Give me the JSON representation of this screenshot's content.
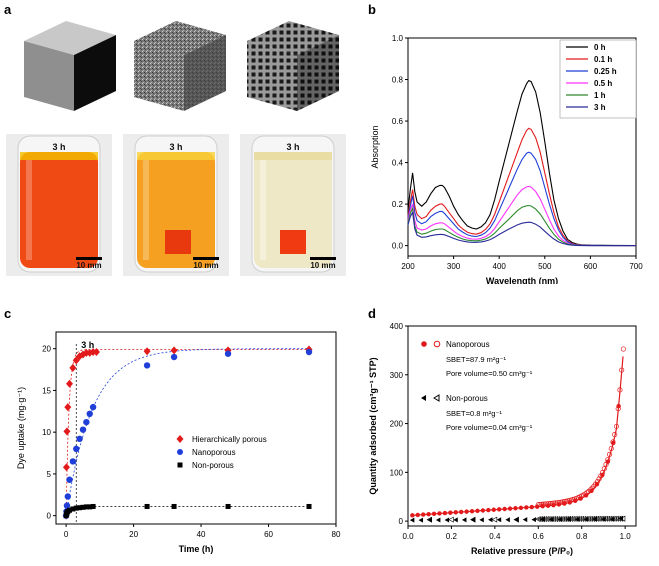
{
  "panels": {
    "a": {
      "label": "a",
      "time_labels": [
        "3 h",
        "3 h",
        "3 h"
      ],
      "scale_labels": [
        "10 mm",
        "10 mm",
        "10 mm"
      ]
    },
    "b": {
      "label": "b"
    },
    "c": {
      "label": "c"
    },
    "d": {
      "label": "d"
    }
  },
  "colors": {
    "black": "#000000",
    "red": "#e31a1c",
    "blue": "#1f3fd8",
    "magenta": "#ff33ff",
    "green": "#2e8b2e",
    "navy": "#2a2a9a",
    "liquid1": "#f04a14",
    "liquid2": "#f5a020",
    "liquid3": "#efe8c6"
  },
  "chart_data": [
    {
      "id": "b",
      "type": "line",
      "title": "",
      "xlabel": "Wavelength (nm)",
      "ylabel": "Absorption",
      "xlim": [
        200,
        700
      ],
      "ylim": [
        -0.05,
        1.0
      ],
      "xticks": [
        200,
        300,
        400,
        500,
        600,
        700
      ],
      "yticks": [
        0.0,
        0.2,
        0.4,
        0.6,
        0.8,
        1.0
      ],
      "legend_position": "top-right",
      "x": [
        200,
        205,
        210,
        215,
        220,
        230,
        240,
        250,
        260,
        270,
        275,
        280,
        290,
        300,
        310,
        320,
        330,
        340,
        350,
        360,
        370,
        380,
        390,
        400,
        420,
        440,
        450,
        460,
        465,
        470,
        480,
        490,
        500,
        510,
        520,
        530,
        540,
        550,
        560,
        570,
        580,
        600,
        650,
        700
      ],
      "series": [
        {
          "name": "0 h",
          "color": "#000000",
          "values": [
            0.17,
            0.27,
            0.35,
            0.26,
            0.21,
            0.19,
            0.21,
            0.25,
            0.28,
            0.29,
            0.29,
            0.28,
            0.24,
            0.19,
            0.15,
            0.12,
            0.095,
            0.085,
            0.08,
            0.09,
            0.11,
            0.15,
            0.22,
            0.31,
            0.48,
            0.65,
            0.73,
            0.78,
            0.795,
            0.79,
            0.74,
            0.64,
            0.5,
            0.35,
            0.22,
            0.13,
            0.07,
            0.03,
            0.015,
            0.008,
            0.004,
            0.002,
            0.001,
            0.0
          ]
        },
        {
          "name": "0.1 h",
          "color": "#e31a1c",
          "values": [
            0.14,
            0.21,
            0.27,
            0.19,
            0.15,
            0.13,
            0.14,
            0.17,
            0.19,
            0.2,
            0.2,
            0.19,
            0.16,
            0.13,
            0.1,
            0.08,
            0.065,
            0.058,
            0.055,
            0.062,
            0.078,
            0.105,
            0.15,
            0.21,
            0.33,
            0.45,
            0.51,
            0.555,
            0.565,
            0.56,
            0.52,
            0.45,
            0.35,
            0.25,
            0.16,
            0.09,
            0.05,
            0.022,
            0.01,
            0.005,
            0.003,
            0.001,
            0.0,
            0.0
          ]
        },
        {
          "name": "0.25 h",
          "color": "#1f3fd8",
          "values": [
            0.13,
            0.19,
            0.24,
            0.16,
            0.12,
            0.105,
            0.115,
            0.14,
            0.155,
            0.165,
            0.165,
            0.155,
            0.13,
            0.105,
            0.08,
            0.065,
            0.052,
            0.046,
            0.044,
            0.05,
            0.062,
            0.085,
            0.12,
            0.17,
            0.27,
            0.37,
            0.415,
            0.445,
            0.45,
            0.445,
            0.415,
            0.36,
            0.28,
            0.2,
            0.13,
            0.075,
            0.04,
            0.018,
            0.008,
            0.004,
            0.002,
            0.001,
            0.0,
            0.0
          ]
        },
        {
          "name": "0.5 h",
          "color": "#ff33ff",
          "values": [
            0.12,
            0.17,
            0.2,
            0.12,
            0.085,
            0.075,
            0.08,
            0.095,
            0.105,
            0.11,
            0.11,
            0.105,
            0.088,
            0.07,
            0.054,
            0.044,
            0.036,
            0.032,
            0.031,
            0.035,
            0.043,
            0.058,
            0.082,
            0.115,
            0.18,
            0.245,
            0.27,
            0.283,
            0.285,
            0.282,
            0.26,
            0.225,
            0.175,
            0.125,
            0.08,
            0.046,
            0.025,
            0.011,
            0.005,
            0.003,
            0.001,
            0.0,
            0.0,
            0.0
          ]
        },
        {
          "name": "1 h",
          "color": "#2e8b2e",
          "values": [
            0.11,
            0.155,
            0.18,
            0.095,
            0.065,
            0.055,
            0.06,
            0.07,
            0.077,
            0.08,
            0.08,
            0.077,
            0.064,
            0.051,
            0.04,
            0.032,
            0.026,
            0.024,
            0.023,
            0.026,
            0.032,
            0.043,
            0.06,
            0.083,
            0.125,
            0.168,
            0.185,
            0.192,
            0.193,
            0.191,
            0.176,
            0.152,
            0.118,
            0.084,
            0.054,
            0.031,
            0.017,
            0.008,
            0.004,
            0.002,
            0.001,
            0.0,
            0.0,
            0.0
          ]
        },
        {
          "name": "3 h",
          "color": "#2a2a9a",
          "values": [
            0.1,
            0.14,
            0.16,
            0.08,
            0.05,
            0.04,
            0.042,
            0.048,
            0.052,
            0.054,
            0.054,
            0.052,
            0.044,
            0.035,
            0.027,
            0.022,
            0.018,
            0.016,
            0.016,
            0.018,
            0.022,
            0.029,
            0.04,
            0.054,
            0.078,
            0.1,
            0.108,
            0.112,
            0.113,
            0.112,
            0.103,
            0.089,
            0.069,
            0.049,
            0.032,
            0.018,
            0.01,
            0.005,
            0.002,
            0.001,
            0.0,
            0.0,
            0.0,
            0.0
          ]
        }
      ]
    },
    {
      "id": "c",
      "type": "scatter",
      "title": "",
      "xlabel": "Time (h)",
      "ylabel": "Dye uptake (mg·g⁻¹)",
      "xlim": [
        -3,
        80
      ],
      "ylim": [
        -1,
        22
      ],
      "xticks": [
        0,
        20,
        40,
        60,
        80
      ],
      "yticks": [
        0,
        5,
        10,
        15,
        20
      ],
      "annotation": {
        "text": "3 h",
        "x": 3
      },
      "legend_position": "center-right",
      "series": [
        {
          "name": "Hierarchically porous",
          "color": "#e31a1c",
          "marker": "diamond",
          "x": [
            0,
            0.1,
            0.25,
            0.5,
            1,
            2,
            3,
            4,
            5,
            6,
            7,
            8,
            9,
            24,
            32,
            48,
            72
          ],
          "y": [
            0,
            5.8,
            10.1,
            13,
            15.8,
            17.7,
            18.6,
            19.1,
            19.3,
            19.5,
            19.5,
            19.6,
            19.6,
            19.7,
            19.8,
            19.8,
            19.9
          ]
        },
        {
          "name": "Nanoporous",
          "color": "#1f3fd8",
          "marker": "circle",
          "x": [
            0,
            0.1,
            0.25,
            0.5,
            1,
            2,
            3,
            4,
            5,
            6,
            7,
            8,
            24,
            32,
            48,
            72
          ],
          "y": [
            0,
            0.5,
            1.2,
            2.3,
            4.3,
            6.5,
            8,
            9.2,
            10.3,
            11.2,
            12.2,
            13,
            18,
            19,
            19.4,
            19.6
          ]
        },
        {
          "name": "Non-porous",
          "color": "#000000",
          "marker": "square",
          "x": [
            0,
            0.1,
            0.25,
            0.5,
            1,
            2,
            3,
            4,
            5,
            6,
            7,
            8,
            24,
            32,
            48,
            72
          ],
          "y": [
            0,
            0.2,
            0.35,
            0.5,
            0.65,
            0.8,
            0.9,
            0.95,
            1,
            1.05,
            1.05,
            1.1,
            1.1,
            1.1,
            1.1,
            1.1
          ]
        }
      ],
      "fits": [
        {
          "name": "Hierarchically porous",
          "color": "#e31a1c",
          "qe": 19.9,
          "k": 1.2
        },
        {
          "name": "Nanoporous",
          "color": "#1f3fd8",
          "qe": 20,
          "k": 0.13
        },
        {
          "name": "Non-porous",
          "color": "#000000",
          "qe": 1.1,
          "k": 0.8
        }
      ]
    },
    {
      "id": "d",
      "type": "scatter",
      "title": "",
      "xlabel": "Relative pressure (P/P₀)",
      "ylabel": "Quantity adsorbed (cm³g⁻¹ STP)",
      "xlim": [
        0,
        1.05
      ],
      "ylim": [
        -10,
        400
      ],
      "xticks": [
        0.0,
        0.2,
        0.4,
        0.6,
        0.8,
        1.0
      ],
      "yticks": [
        0,
        100,
        200,
        300,
        400
      ],
      "legend_position": "top-left",
      "series": [
        {
          "name": "Nanoporous",
          "color": "#e31a1c",
          "caption": "Nanoporous",
          "stats": [
            "SBET=87.9 m²g⁻¹",
            "Pore volume=0.50 cm³g⁻¹"
          ],
          "k": 3.4
        },
        {
          "name": "Non-porous",
          "color": "#000000",
          "caption": "Non-porous",
          "stats": [
            "SBET=0.8 m²g⁻¹",
            "Pore volume=0.04 cm³g⁻¹"
          ],
          "k": 0.2
        }
      ]
    }
  ]
}
